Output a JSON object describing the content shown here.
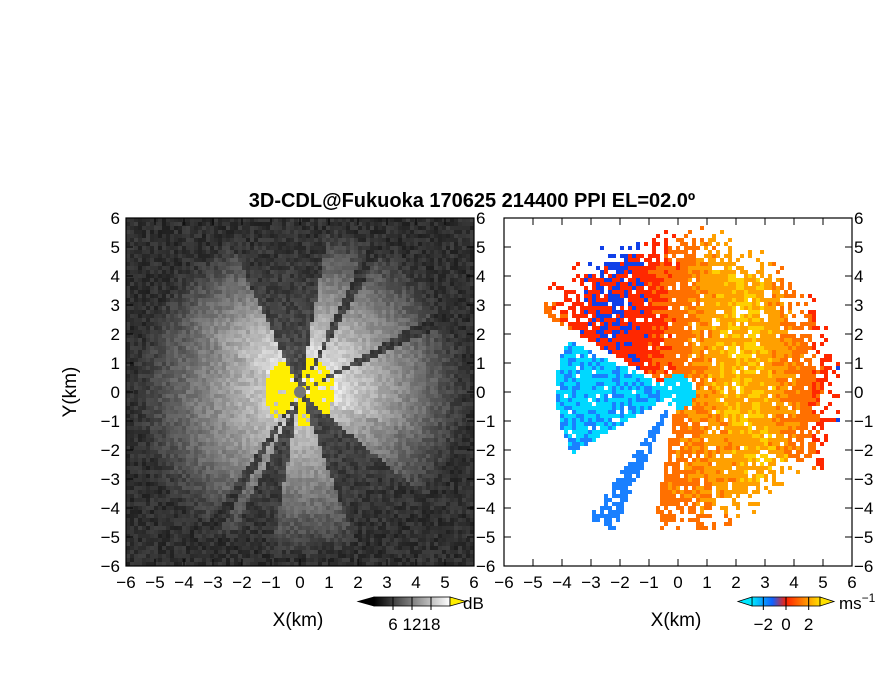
{
  "chart_data": [
    {
      "type": "heatmap",
      "panel": "reflectivity",
      "title": "3D-CDL@Fukuoka 170625 214400 PPI EL=02.0º",
      "xlabel": "X(km)",
      "ylabel": "Y(km)",
      "xlim": [
        -6,
        6
      ],
      "ylim": [
        -6,
        6
      ],
      "xticks": [
        "−6",
        "−5",
        "−4",
        "−3",
        "−2",
        "−1",
        "0",
        "1",
        "2",
        "3",
        "4",
        "5",
        "6"
      ],
      "yticks": [
        "6",
        "5",
        "4",
        "3",
        "2",
        "1",
        "0",
        "−1",
        "−2",
        "−3",
        "−4",
        "−5",
        "−6"
      ],
      "colorbar": {
        "unit": "dB",
        "ticks": [
          "6",
          "12",
          "18"
        ],
        "range": [
          0,
          24
        ],
        "colormap": "grayscale",
        "overflow_color": "#ffee00"
      },
      "sector_gaps_deg": [
        [
          -25,
          10
        ],
        [
          25,
          30
        ],
        [
          60,
          65
        ],
        [
          130,
          160
        ],
        [
          190,
          205
        ],
        [
          210,
          215
        ]
      ],
      "strong_echo_color": "#ffee00"
    },
    {
      "type": "heatmap",
      "panel": "doppler_velocity",
      "xlabel": "X(km)",
      "xlim": [
        -6,
        6
      ],
      "ylim": [
        -6,
        6
      ],
      "xticks": [
        "−6",
        "−5",
        "−4",
        "−3",
        "−2",
        "−1",
        "0",
        "1",
        "2",
        "3",
        "4",
        "5",
        "6"
      ],
      "yticks": [
        "6",
        "5",
        "4",
        "3",
        "2",
        "1",
        "0",
        "−1",
        "−2",
        "−3",
        "−4",
        "−5",
        "−6"
      ],
      "colorbar": {
        "unit": "ms",
        "unit_exp": "−1",
        "ticks": [
          "−2",
          "0",
          "2"
        ],
        "range": [
          -3,
          3
        ],
        "colormap": "cyan-blue-red-yellow"
      }
    }
  ]
}
